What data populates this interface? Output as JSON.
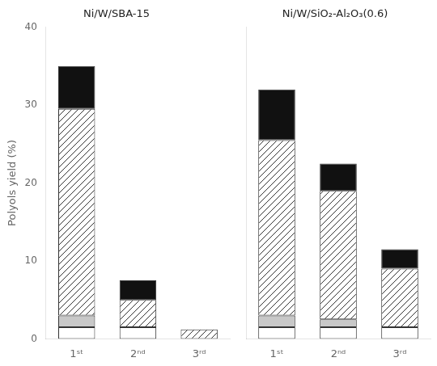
{
  "chart_data": [
    {
      "type": "bar",
      "title": "Ni/W/SBA-15",
      "ylabel": "Polyols yield (%)",
      "categories": [
        "1ˢᵗ",
        "2ⁿᵈ",
        "3ʳᵈ"
      ],
      "series": [
        {
          "color": "#ffffff",
          "values": [
            1.5,
            1.5,
            0.0
          ]
        },
        {
          "color": "#c8c8c8",
          "values": [
            1.5,
            0.0,
            0.0
          ]
        },
        {
          "color": "#ffffff",
          "values": [
            26.5,
            3.5,
            1.2
          ]
        },
        {
          "color": "#111111",
          "values": [
            5.5,
            2.5,
            0.0
          ]
        }
      ],
      "stacked": true,
      "ylim": [
        0,
        40
      ],
      "yticks": [
        0,
        10,
        20,
        30,
        40
      ],
      "grid": false
    },
    {
      "type": "bar",
      "title": "Ni/W/SiO₂-Al₂O₃(0.6)",
      "categories": [
        "1ˢᵗ",
        "2ⁿᵈ",
        "3ʳᵈ"
      ],
      "series": [
        {
          "color": "#ffffff",
          "values": [
            1.5,
            1.5,
            1.5
          ]
        },
        {
          "color": "#c8c8c8",
          "values": [
            1.5,
            1.0,
            0.0
          ]
        },
        {
          "color": "#ffffff",
          "values": [
            22.5,
            16.5,
            7.5
          ]
        },
        {
          "color": "#111111",
          "values": [
            6.5,
            3.5,
            2.5
          ]
        }
      ],
      "stacked": true,
      "ylim": [
        0,
        40
      ],
      "yticks": [
        0,
        10,
        20,
        30,
        40
      ],
      "grid": false,
      "tick_labels": "x"
    }
  ]
}
